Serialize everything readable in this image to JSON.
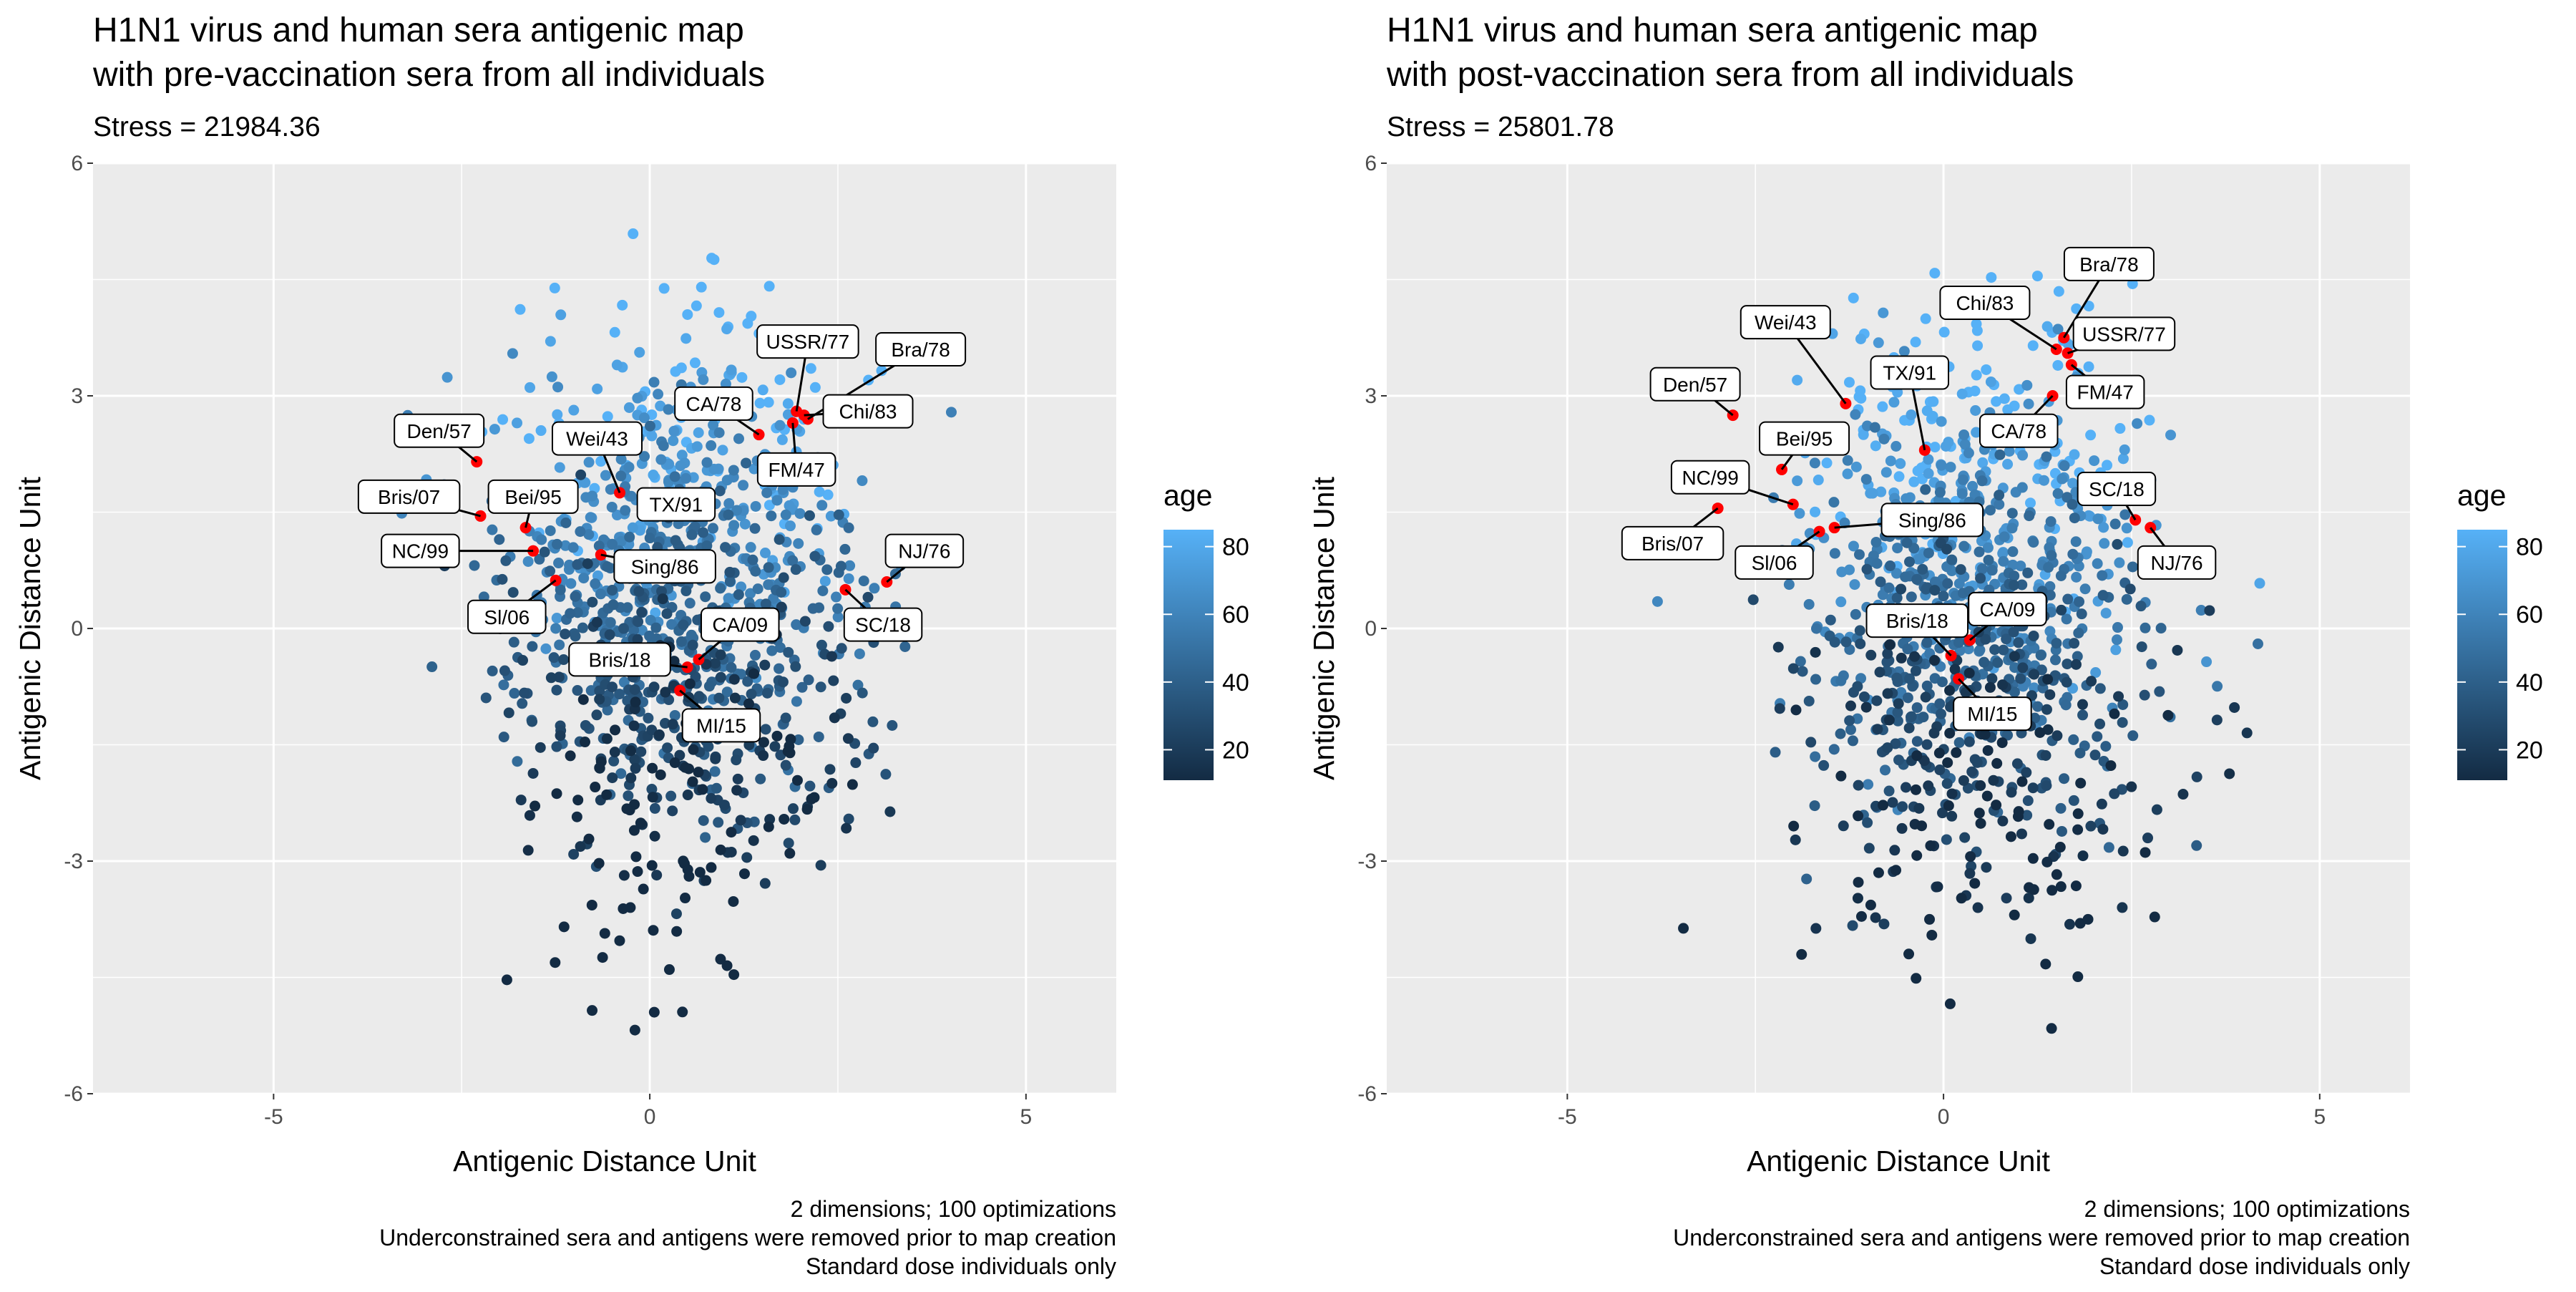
{
  "chart_data": [
    {
      "type": "scatter",
      "title_lines": [
        "H1N1 virus and human sera antigenic map",
        "with pre-vaccination sera from all individuals"
      ],
      "subtitle": "Stress = 21984.36",
      "xlabel": "Antigenic Distance Unit",
      "ylabel": "Antigenic Distance Unit",
      "xlim": [
        -7.4,
        6.2
      ],
      "ylim": [
        -6.0,
        6.0
      ],
      "x_ticks": [
        -5,
        0,
        5
      ],
      "x_tick_labels": [
        "-5",
        "0",
        "5"
      ],
      "y_ticks": [
        -6,
        -3,
        0,
        3,
        6
      ],
      "y_tick_labels": [
        "-6",
        "-3",
        "0",
        "3",
        "6"
      ],
      "grid": true,
      "caption_lines": [
        "2 dimensions; 100 optimizations",
        "Underconstrained sera and antigens were removed prior to map creation",
        "Standard dose individuals only"
      ],
      "legend": {
        "title": "age",
        "ticks": [
          20,
          40,
          60,
          80
        ],
        "tick_labels": [
          "20",
          "40",
          "60",
          "80"
        ],
        "range": [
          11,
          85
        ],
        "low_color": "#132B43",
        "high_color": "#56B1F7",
        "placement": "right"
      },
      "sera_cloud": {
        "center": [
          0.4,
          0.3
        ],
        "spread": [
          1.15,
          1.75
        ],
        "approx_count": 1100,
        "age_range": [
          11,
          85
        ],
        "note_color_trend": "younger (dark) lower, older (light) higher"
      },
      "antigen_color": "#FF0000",
      "antigens": [
        {
          "name": "USSR/77",
          "x": 1.95,
          "y": 2.8,
          "lx": 2.1,
          "ly": 3.7
        },
        {
          "name": "Bra/78",
          "x": 2.1,
          "y": 2.7,
          "lx": 3.6,
          "ly": 3.6
        },
        {
          "name": "Chi/83",
          "x": 2.05,
          "y": 2.75,
          "lx": 2.9,
          "ly": 2.8
        },
        {
          "name": "CA/78",
          "x": 1.45,
          "y": 2.5,
          "lx": 0.85,
          "ly": 2.9
        },
        {
          "name": "FM/47",
          "x": 1.9,
          "y": 2.65,
          "lx": 1.95,
          "ly": 2.05
        },
        {
          "name": "Den/57",
          "x": -2.3,
          "y": 2.15,
          "lx": -2.8,
          "ly": 2.55
        },
        {
          "name": "Wei/43",
          "x": -0.4,
          "y": 1.75,
          "lx": -0.7,
          "ly": 2.45
        },
        {
          "name": "Bris/07",
          "x": -2.25,
          "y": 1.45,
          "lx": -3.2,
          "ly": 1.7
        },
        {
          "name": "Bei/95",
          "x": -1.65,
          "y": 1.3,
          "lx": -1.55,
          "ly": 1.7
        },
        {
          "name": "TX/91",
          "x": -0.05,
          "y": 1.65,
          "lx": 0.35,
          "ly": 1.6
        },
        {
          "name": "NC/99",
          "x": -1.55,
          "y": 1.0,
          "lx": -3.05,
          "ly": 1.0
        },
        {
          "name": "Sing/86",
          "x": -0.65,
          "y": 0.95,
          "lx": 0.2,
          "ly": 0.8
        },
        {
          "name": "Sl/06",
          "x": -1.25,
          "y": 0.62,
          "lx": -1.9,
          "ly": 0.15
        },
        {
          "name": "NJ/76",
          "x": 3.15,
          "y": 0.6,
          "lx": 3.65,
          "ly": 1.0
        },
        {
          "name": "SC/18",
          "x": 2.6,
          "y": 0.5,
          "lx": 3.1,
          "ly": 0.05
        },
        {
          "name": "CA/09",
          "x": 0.65,
          "y": -0.4,
          "lx": 1.2,
          "ly": 0.05
        },
        {
          "name": "Bris/18",
          "x": 0.5,
          "y": -0.5,
          "lx": -0.4,
          "ly": -0.4
        },
        {
          "name": "MI/15",
          "x": 0.4,
          "y": -0.8,
          "lx": 0.95,
          "ly": -1.25
        }
      ]
    },
    {
      "type": "scatter",
      "title_lines": [
        "H1N1 virus and human sera antigenic map",
        "with post-vaccination sera from all individuals"
      ],
      "subtitle": "Stress = 25801.78",
      "xlabel": "Antigenic Distance Unit",
      "ylabel": "Antigenic Distance Unit",
      "xlim": [
        -7.4,
        6.2
      ],
      "ylim": [
        -6.0,
        6.0
      ],
      "x_ticks": [
        -5,
        0,
        5
      ],
      "x_tick_labels": [
        "-5",
        "0",
        "5"
      ],
      "y_ticks": [
        -6,
        -3,
        0,
        3,
        6
      ],
      "y_tick_labels": [
        "-6",
        "-3",
        "0",
        "3",
        "6"
      ],
      "grid": true,
      "caption_lines": [
        "2 dimensions; 100 optimizations",
        "Underconstrained sera and antigens were removed prior to map creation",
        "Standard dose individuals only"
      ],
      "legend": {
        "title": "age",
        "ticks": [
          20,
          40,
          60,
          80
        ],
        "tick_labels": [
          "20",
          "40",
          "60",
          "80"
        ],
        "range": [
          11,
          85
        ],
        "low_color": "#132B43",
        "high_color": "#56B1F7",
        "placement": "right"
      },
      "sera_cloud": {
        "center": [
          0.4,
          0.1
        ],
        "spread": [
          1.2,
          1.85
        ],
        "approx_count": 1100,
        "age_range": [
          11,
          85
        ],
        "note_color_trend": "younger (dark) lower, older (light) higher"
      },
      "antigen_color": "#FF0000",
      "antigens": [
        {
          "name": "Bra/78",
          "x": 1.6,
          "y": 3.75,
          "lx": 2.2,
          "ly": 4.7
        },
        {
          "name": "Chi/83",
          "x": 1.5,
          "y": 3.6,
          "lx": 0.55,
          "ly": 4.2
        },
        {
          "name": "USSR/77",
          "x": 1.65,
          "y": 3.55,
          "lx": 2.4,
          "ly": 3.8
        },
        {
          "name": "FM/47",
          "x": 1.7,
          "y": 3.4,
          "lx": 2.15,
          "ly": 3.05
        },
        {
          "name": "Wei/43",
          "x": -1.3,
          "y": 2.9,
          "lx": -2.1,
          "ly": 3.95
        },
        {
          "name": "TX/91",
          "x": -0.25,
          "y": 2.3,
          "lx": -0.45,
          "ly": 3.3
        },
        {
          "name": "Den/57",
          "x": -2.8,
          "y": 2.75,
          "lx": -3.3,
          "ly": 3.15
        },
        {
          "name": "CA/78",
          "x": 1.45,
          "y": 3.0,
          "lx": 1.0,
          "ly": 2.55
        },
        {
          "name": "Bei/95",
          "x": -2.15,
          "y": 2.05,
          "lx": -1.85,
          "ly": 2.45
        },
        {
          "name": "SC/18",
          "x": 2.55,
          "y": 1.4,
          "lx": 2.3,
          "ly": 1.8
        },
        {
          "name": "NC/99",
          "x": -2.0,
          "y": 1.6,
          "lx": -3.1,
          "ly": 1.95
        },
        {
          "name": "Bris/07",
          "x": -3.0,
          "y": 1.55,
          "lx": -3.6,
          "ly": 1.1
        },
        {
          "name": "NJ/76",
          "x": 2.75,
          "y": 1.3,
          "lx": 3.1,
          "ly": 0.85
        },
        {
          "name": "Sing/86",
          "x": -1.45,
          "y": 1.3,
          "lx": -0.15,
          "ly": 1.4
        },
        {
          "name": "Sl/06",
          "x": -1.65,
          "y": 1.25,
          "lx": -2.25,
          "ly": 0.85
        },
        {
          "name": "CA/09",
          "x": 0.35,
          "y": -0.15,
          "lx": 0.85,
          "ly": 0.25
        },
        {
          "name": "Bris/18",
          "x": 0.1,
          "y": -0.35,
          "lx": -0.35,
          "ly": 0.1
        },
        {
          "name": "MI/15",
          "x": 0.2,
          "y": -0.65,
          "lx": 0.65,
          "ly": -1.1
        }
      ]
    }
  ]
}
